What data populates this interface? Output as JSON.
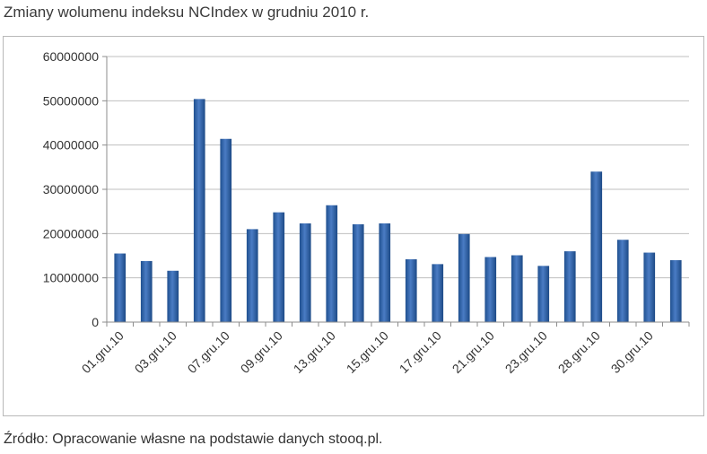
{
  "title": "Zmiany wolumenu indeksu NCIndex w grudniu 2010 r.",
  "source": "Źródło: Opracowanie własne na podstawie danych stooq.pl.",
  "colors": {
    "bar": "#2e5f9e",
    "bar_light": "#5a8ad0",
    "grid": "#bfbfbf",
    "axis": "#8c8c8c"
  },
  "chart_data": {
    "type": "bar",
    "title": "",
    "xlabel": "",
    "ylabel": "",
    "ylim": [
      0,
      60000000
    ],
    "yticks": [
      0,
      10000000,
      20000000,
      30000000,
      40000000,
      50000000,
      60000000
    ],
    "ytick_labels": [
      "0",
      "10000000",
      "20000000",
      "30000000",
      "40000000",
      "50000000",
      "60000000"
    ],
    "grid": true,
    "legend": "none",
    "categories": [
      "01.gru.10",
      "02.gru.10",
      "03.gru.10",
      "06.gru.10",
      "07.gru.10",
      "08.gru.10",
      "09.gru.10",
      "10.gru.10",
      "13.gru.10",
      "14.gru.10",
      "15.gru.10",
      "16.gru.10",
      "17.gru.10",
      "20.gru.10",
      "21.gru.10",
      "22.gru.10",
      "23.gru.10",
      "27.gru.10",
      "28.gru.10",
      "29.gru.10",
      "30.gru.10",
      "31.gru.10"
    ],
    "xtick_labels_shown": [
      "01.gru.10",
      "03.gru.10",
      "07.gru.10",
      "09.gru.10",
      "13.gru.10",
      "15.gru.10",
      "17.gru.10",
      "21.gru.10",
      "23.gru.10",
      "28.gru.10",
      "30.gru.10"
    ],
    "values": [
      15500000,
      13800000,
      11600000,
      50400000,
      41400000,
      21000000,
      24800000,
      22300000,
      26400000,
      22100000,
      22300000,
      14200000,
      13100000,
      19900000,
      14700000,
      15100000,
      12700000,
      16000000,
      34000000,
      18600000,
      15700000,
      14000000
    ]
  }
}
